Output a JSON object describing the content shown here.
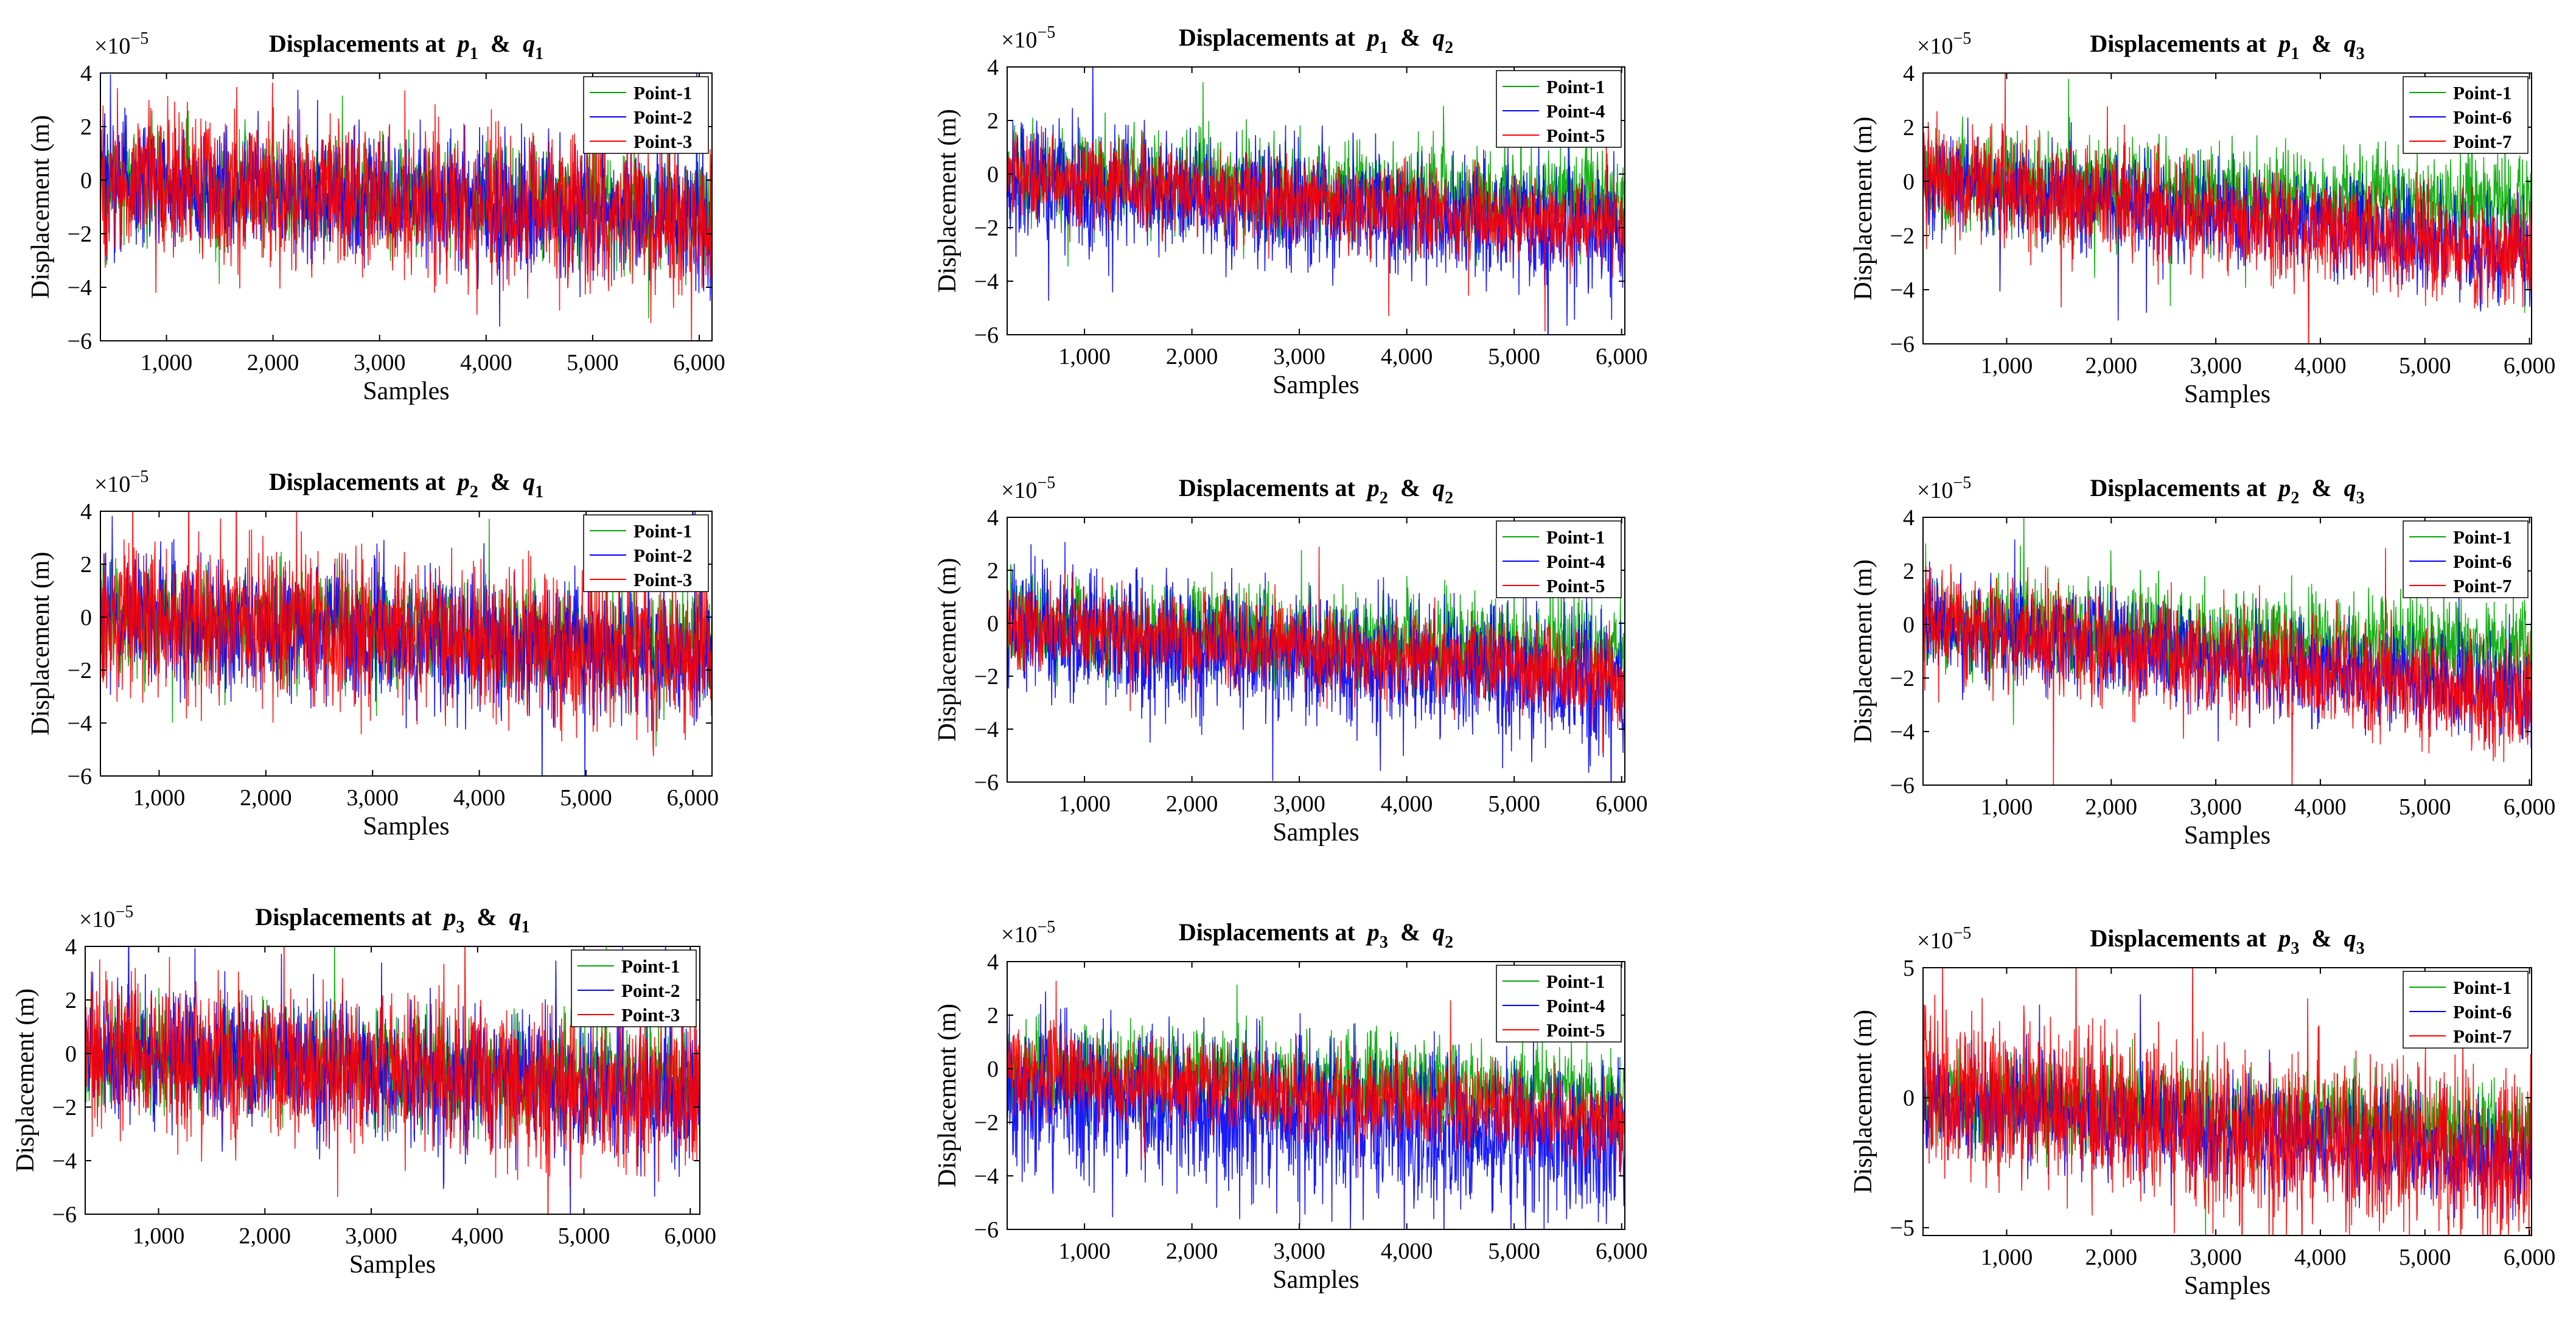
{
  "figure": {
    "shared": {
      "xlabel": "Samples",
      "ylabel": "Displacement (m)",
      "exponent_base": "×10",
      "exponent_power": "−5",
      "title_prefix": "Displacements at",
      "title_amp": "&"
    }
  },
  "colors": {
    "Point-1": "#00aa00",
    "Point-2": "#0000ff",
    "Point-3": "#ff0000",
    "Point-4": "#0000ff",
    "Point-5": "#ff0000",
    "Point-6": "#0000ff",
    "Point-7": "#ff0000"
  },
  "chart_data": [
    {
      "type": "line",
      "title": "Displacements at p1 & q1",
      "title_p": "p",
      "title_p_sub": "1",
      "title_q": "q",
      "title_q_sub": "1",
      "xlabel": "Samples",
      "ylabel": "Displacement (m)",
      "xlim": [
        380,
        6120
      ],
      "ylim": [
        -6,
        4
      ],
      "y_scale_exponent": -5,
      "xticks": [
        1000,
        2000,
        3000,
        4000,
        5000,
        6000
      ],
      "xtick_labels": [
        "1,000",
        "2,000",
        "3,000",
        "4,000",
        "5,000",
        "6,000"
      ],
      "yticks": [
        -6,
        -4,
        -2,
        0,
        2,
        4
      ],
      "ytick_labels": [
        "−6",
        "−4",
        "−2",
        "0",
        "2",
        "4"
      ],
      "legend_location": "top-right",
      "series": [
        {
          "name": "Point-1",
          "trend": [
            0,
            -1.2
          ],
          "amplitude": 1.0
        },
        {
          "name": "Point-2",
          "trend": [
            0,
            -1.6
          ],
          "amplitude": 1.2
        },
        {
          "name": "Point-3",
          "trend": [
            0,
            -1.5
          ],
          "amplitude": 1.4
        }
      ]
    },
    {
      "type": "line",
      "title": "Displacements at p1 & q2",
      "title_p": "p",
      "title_p_sub": "1",
      "title_q": "q",
      "title_q_sub": "2",
      "xlabel": "Samples",
      "ylabel": "Displacement (m)",
      "xlim": [
        280,
        6030
      ],
      "ylim": [
        -6,
        4
      ],
      "y_scale_exponent": -5,
      "xticks": [
        1000,
        2000,
        3000,
        4000,
        5000,
        6000
      ],
      "xtick_labels": [
        "1,000",
        "2,000",
        "3,000",
        "4,000",
        "5,000",
        "6,000"
      ],
      "yticks": [
        -6,
        -4,
        -2,
        0,
        2,
        4
      ],
      "ytick_labels": [
        "−6",
        "−4",
        "−2",
        "0",
        "2",
        "4"
      ],
      "legend_location": "top-right",
      "series": [
        {
          "name": "Point-1",
          "trend": [
            0,
            -1.0
          ],
          "amplitude": 0.9
        },
        {
          "name": "Point-4",
          "trend": [
            -0.2,
            -2.2
          ],
          "amplitude": 1.1
        },
        {
          "name": "Point-5",
          "trend": [
            0,
            -2.0
          ],
          "amplitude": 0.8
        }
      ]
    },
    {
      "type": "line",
      "title": "Displacements at p1 & q3",
      "title_p": "p",
      "title_p_sub": "1",
      "title_q": "q",
      "title_q_sub": "3",
      "xlabel": "Samples",
      "ylabel": "Displacement (m)",
      "xlim": [
        200,
        6020
      ],
      "ylim": [
        -6,
        4
      ],
      "y_scale_exponent": -5,
      "xticks": [
        1000,
        2000,
        3000,
        4000,
        5000,
        6000
      ],
      "xtick_labels": [
        "1,000",
        "2,000",
        "3,000",
        "4,000",
        "5,000",
        "6,000"
      ],
      "yticks": [
        -6,
        -4,
        -2,
        0,
        2,
        4
      ],
      "ytick_labels": [
        "−6",
        "−4",
        "−2",
        "0",
        "2",
        "4"
      ],
      "legend_location": "top-right",
      "series": [
        {
          "name": "Point-1",
          "trend": [
            0,
            -1.0
          ],
          "amplitude": 0.9
        },
        {
          "name": "Point-6",
          "trend": [
            0,
            -2.6
          ],
          "amplitude": 0.9
        },
        {
          "name": "Point-7",
          "trend": [
            0,
            -2.8
          ],
          "amplitude": 1.0
        }
      ]
    },
    {
      "type": "line",
      "title": "Displacements at p2 & q1",
      "title_p": "p",
      "title_p_sub": "2",
      "title_q": "q",
      "title_q_sub": "1",
      "xlabel": "Samples",
      "ylabel": "Displacement (m)",
      "xlim": [
        450,
        6180
      ],
      "ylim": [
        -6,
        4
      ],
      "y_scale_exponent": -5,
      "xticks": [
        1000,
        2000,
        3000,
        4000,
        5000,
        6000
      ],
      "xtick_labels": [
        "1,000",
        "2,000",
        "3,000",
        "4,000",
        "5,000",
        "6,000"
      ],
      "yticks": [
        -6,
        -4,
        -2,
        0,
        2,
        4
      ],
      "ytick_labels": [
        "−6",
        "−4",
        "−2",
        "0",
        "2",
        "4"
      ],
      "legend_location": "top-right",
      "series": [
        {
          "name": "Point-1",
          "trend": [
            0,
            -1.2
          ],
          "amplitude": 1.0
        },
        {
          "name": "Point-2",
          "trend": [
            0,
            -1.6
          ],
          "amplitude": 1.2
        },
        {
          "name": "Point-3",
          "trend": [
            0,
            -1.5
          ],
          "amplitude": 1.4
        }
      ]
    },
    {
      "type": "line",
      "title": "Displacements at p2 & q2",
      "title_p": "p",
      "title_p_sub": "2",
      "title_q": "q",
      "title_q_sub": "2",
      "xlabel": "Samples",
      "ylabel": "Displacement (m)",
      "xlim": [
        280,
        6030
      ],
      "ylim": [
        -6,
        4
      ],
      "y_scale_exponent": -5,
      "xticks": [
        1000,
        2000,
        3000,
        4000,
        5000,
        6000
      ],
      "xtick_labels": [
        "1,000",
        "2,000",
        "3,000",
        "4,000",
        "5,000",
        "6,000"
      ],
      "yticks": [
        -6,
        -4,
        -2,
        0,
        2,
        4
      ],
      "ytick_labels": [
        "−6",
        "−4",
        "−2",
        "0",
        "2",
        "4"
      ],
      "legend_location": "top-right",
      "series": [
        {
          "name": "Point-1",
          "trend": [
            0,
            -1.0
          ],
          "amplitude": 0.9
        },
        {
          "name": "Point-4",
          "trend": [
            -0.2,
            -2.4
          ],
          "amplitude": 1.2
        },
        {
          "name": "Point-5",
          "trend": [
            0,
            -2.0
          ],
          "amplitude": 0.8
        }
      ]
    },
    {
      "type": "line",
      "title": "Displacements at p2 & q3",
      "title_p": "p",
      "title_p_sub": "2",
      "title_q": "q",
      "title_q_sub": "3",
      "xlabel": "Samples",
      "ylabel": "Displacement (m)",
      "xlim": [
        200,
        6020
      ],
      "ylim": [
        -6,
        4
      ],
      "y_scale_exponent": -5,
      "xticks": [
        1000,
        2000,
        3000,
        4000,
        5000,
        6000
      ],
      "xtick_labels": [
        "1,000",
        "2,000",
        "3,000",
        "4,000",
        "5,000",
        "6,000"
      ],
      "yticks": [
        -6,
        -4,
        -2,
        0,
        2,
        4
      ],
      "ytick_labels": [
        "−6",
        "−4",
        "−2",
        "0",
        "2",
        "4"
      ],
      "legend_location": "top-right",
      "series": [
        {
          "name": "Point-1",
          "trend": [
            0,
            -1.0
          ],
          "amplitude": 0.9
        },
        {
          "name": "Point-6",
          "trend": [
            0,
            -2.6
          ],
          "amplitude": 0.9
        },
        {
          "name": "Point-7",
          "trend": [
            0,
            -2.8
          ],
          "amplitude": 1.0
        }
      ]
    },
    {
      "type": "line",
      "title": "Displacements at p3 & q1",
      "title_p": "p",
      "title_p_sub": "3",
      "title_q": "q",
      "title_q_sub": "1",
      "xlabel": "Samples",
      "ylabel": "Displacement (m)",
      "xlim": [
        310,
        6090
      ],
      "ylim": [
        -6,
        4
      ],
      "y_scale_exponent": -5,
      "xticks": [
        1000,
        2000,
        3000,
        4000,
        5000,
        6000
      ],
      "xtick_labels": [
        "1,000",
        "2,000",
        "3,000",
        "4,000",
        "5,000",
        "6,000"
      ],
      "yticks": [
        -6,
        -4,
        -2,
        0,
        2,
        4
      ],
      "ytick_labels": [
        "−6",
        "−4",
        "−2",
        "0",
        "2",
        "4"
      ],
      "legend_location": "top-right",
      "series": [
        {
          "name": "Point-1",
          "trend": [
            0,
            -1.2
          ],
          "amplitude": 1.0
        },
        {
          "name": "Point-2",
          "trend": [
            0,
            -1.6
          ],
          "amplitude": 1.2
        },
        {
          "name": "Point-3",
          "trend": [
            0,
            -1.5
          ],
          "amplitude": 1.4
        }
      ]
    },
    {
      "type": "line",
      "title": "Displacements at p3 & q2",
      "title_p": "p",
      "title_p_sub": "3",
      "title_q": "q",
      "title_q_sub": "2",
      "xlabel": "Samples",
      "ylabel": "Displacement (m)",
      "xlim": [
        280,
        6030
      ],
      "ylim": [
        -6,
        4
      ],
      "y_scale_exponent": -5,
      "xticks": [
        1000,
        2000,
        3000,
        4000,
        5000,
        6000
      ],
      "xtick_labels": [
        "1,000",
        "2,000",
        "3,000",
        "4,000",
        "5,000",
        "6,000"
      ],
      "yticks": [
        -6,
        -4,
        -2,
        0,
        2,
        4
      ],
      "ytick_labels": [
        "−6",
        "−4",
        "−2",
        "0",
        "2",
        "4"
      ],
      "legend_location": "top-right",
      "series": [
        {
          "name": "Point-1",
          "trend": [
            0,
            -1.0
          ],
          "amplitude": 0.9
        },
        {
          "name": "Point-4",
          "trend": [
            -0.8,
            -3.0
          ],
          "amplitude": 1.5
        },
        {
          "name": "Point-5",
          "trend": [
            0,
            -2.0
          ],
          "amplitude": 0.8
        }
      ]
    },
    {
      "type": "line",
      "title": "Displacements at p3 & q3",
      "title_p": "p",
      "title_p_sub": "3",
      "title_q": "q",
      "title_q_sub": "3",
      "xlabel": "Samples",
      "ylabel": "Displacement (m)",
      "xlim": [
        200,
        6020
      ],
      "ylim": [
        -5.3,
        5
      ],
      "y_scale_exponent": -5,
      "xticks": [
        1000,
        2000,
        3000,
        4000,
        5000,
        6000
      ],
      "xtick_labels": [
        "1,000",
        "2,000",
        "3,000",
        "4,000",
        "5,000",
        "6,000"
      ],
      "yticks": [
        -5,
        0,
        5
      ],
      "ytick_labels": [
        "−5",
        "0",
        "5"
      ],
      "legend_location": "top-right",
      "series": [
        {
          "name": "Point-1",
          "trend": [
            0,
            -1.3
          ],
          "amplitude": 0.9
        },
        {
          "name": "Point-6",
          "trend": [
            0,
            -2.5
          ],
          "amplitude": 1.0
        },
        {
          "name": "Point-7",
          "trend": [
            0.3,
            -2.7
          ],
          "amplitude": 1.6
        }
      ]
    }
  ]
}
